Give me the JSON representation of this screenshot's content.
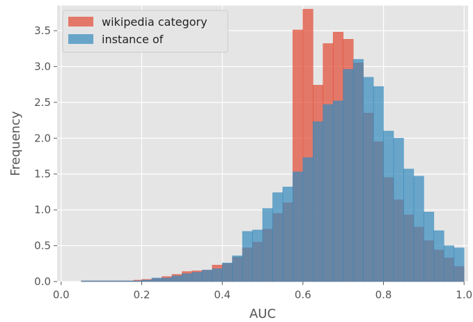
{
  "chart_data": {
    "type": "histogram",
    "xlabel": "AUC",
    "ylabel": "Frequency",
    "xlim": [
      -0.01,
      1.01
    ],
    "ylim": [
      0,
      3.85
    ],
    "xticks": [
      "0.0",
      "0.2",
      "0.4",
      "0.6",
      "0.8",
      "1.0"
    ],
    "xtick_values": [
      0.0,
      0.2,
      0.4,
      0.6,
      0.8,
      1.0
    ],
    "yticks": [
      "0.0",
      "0.5",
      "1.0",
      "1.5",
      "2.0",
      "2.5",
      "3.0",
      "3.5"
    ],
    "ytick_values": [
      0.0,
      0.5,
      1.0,
      1.5,
      2.0,
      2.5,
      3.0,
      3.5
    ],
    "grid": true,
    "legend_position": "top-left",
    "series": [
      {
        "name": "wikipedia category",
        "color": "#E24A33",
        "bins": [
          [
            0.0,
            0.0
          ],
          [
            0.05,
            0.01
          ],
          [
            0.08,
            0.01
          ],
          [
            0.1,
            0.01
          ],
          [
            0.13,
            0.01
          ],
          [
            0.15,
            0.01
          ],
          [
            0.18,
            0.02
          ],
          [
            0.2,
            0.03
          ],
          [
            0.225,
            0.04
          ],
          [
            0.25,
            0.07
          ],
          [
            0.275,
            0.1
          ],
          [
            0.3,
            0.14
          ],
          [
            0.325,
            0.15
          ],
          [
            0.35,
            0.16
          ],
          [
            0.375,
            0.23
          ],
          [
            0.4,
            0.25
          ],
          [
            0.425,
            0.34
          ],
          [
            0.45,
            0.47
          ],
          [
            0.475,
            0.55
          ],
          [
            0.5,
            0.73
          ],
          [
            0.525,
            0.95
          ],
          [
            0.55,
            1.1
          ],
          [
            0.575,
            3.51
          ],
          [
            0.6,
            3.8
          ],
          [
            0.625,
            2.74
          ],
          [
            0.65,
            3.32
          ],
          [
            0.675,
            3.48
          ],
          [
            0.7,
            3.38
          ],
          [
            0.725,
            3.05
          ],
          [
            0.75,
            2.35
          ],
          [
            0.775,
            1.95
          ],
          [
            0.8,
            1.45
          ],
          [
            0.825,
            1.14
          ],
          [
            0.85,
            0.93
          ],
          [
            0.875,
            0.76
          ],
          [
            0.9,
            0.57
          ],
          [
            0.925,
            0.44
          ],
          [
            0.95,
            0.33
          ],
          [
            0.975,
            0.21
          ]
        ]
      },
      {
        "name": "instance of",
        "color": "#348ABD",
        "bins": [
          [
            0.0,
            0.0
          ],
          [
            0.05,
            0.01
          ],
          [
            0.1,
            0.01
          ],
          [
            0.15,
            0.01
          ],
          [
            0.2,
            0.02
          ],
          [
            0.225,
            0.05
          ],
          [
            0.25,
            0.05
          ],
          [
            0.275,
            0.08
          ],
          [
            0.3,
            0.11
          ],
          [
            0.325,
            0.13
          ],
          [
            0.35,
            0.16
          ],
          [
            0.375,
            0.18
          ],
          [
            0.4,
            0.26
          ],
          [
            0.425,
            0.36
          ],
          [
            0.45,
            0.7
          ],
          [
            0.475,
            0.72
          ],
          [
            0.5,
            1.02
          ],
          [
            0.525,
            1.24
          ],
          [
            0.55,
            1.32
          ],
          [
            0.575,
            1.53
          ],
          [
            0.6,
            1.73
          ],
          [
            0.625,
            2.23
          ],
          [
            0.65,
            2.47
          ],
          [
            0.675,
            2.52
          ],
          [
            0.7,
            2.96
          ],
          [
            0.725,
            3.1
          ],
          [
            0.75,
            2.85
          ],
          [
            0.775,
            2.72
          ],
          [
            0.8,
            2.1
          ],
          [
            0.825,
            2.0
          ],
          [
            0.85,
            1.57
          ],
          [
            0.875,
            1.47
          ],
          [
            0.9,
            0.97
          ],
          [
            0.925,
            0.71
          ],
          [
            0.95,
            0.5
          ],
          [
            0.975,
            0.47
          ]
        ]
      }
    ]
  }
}
